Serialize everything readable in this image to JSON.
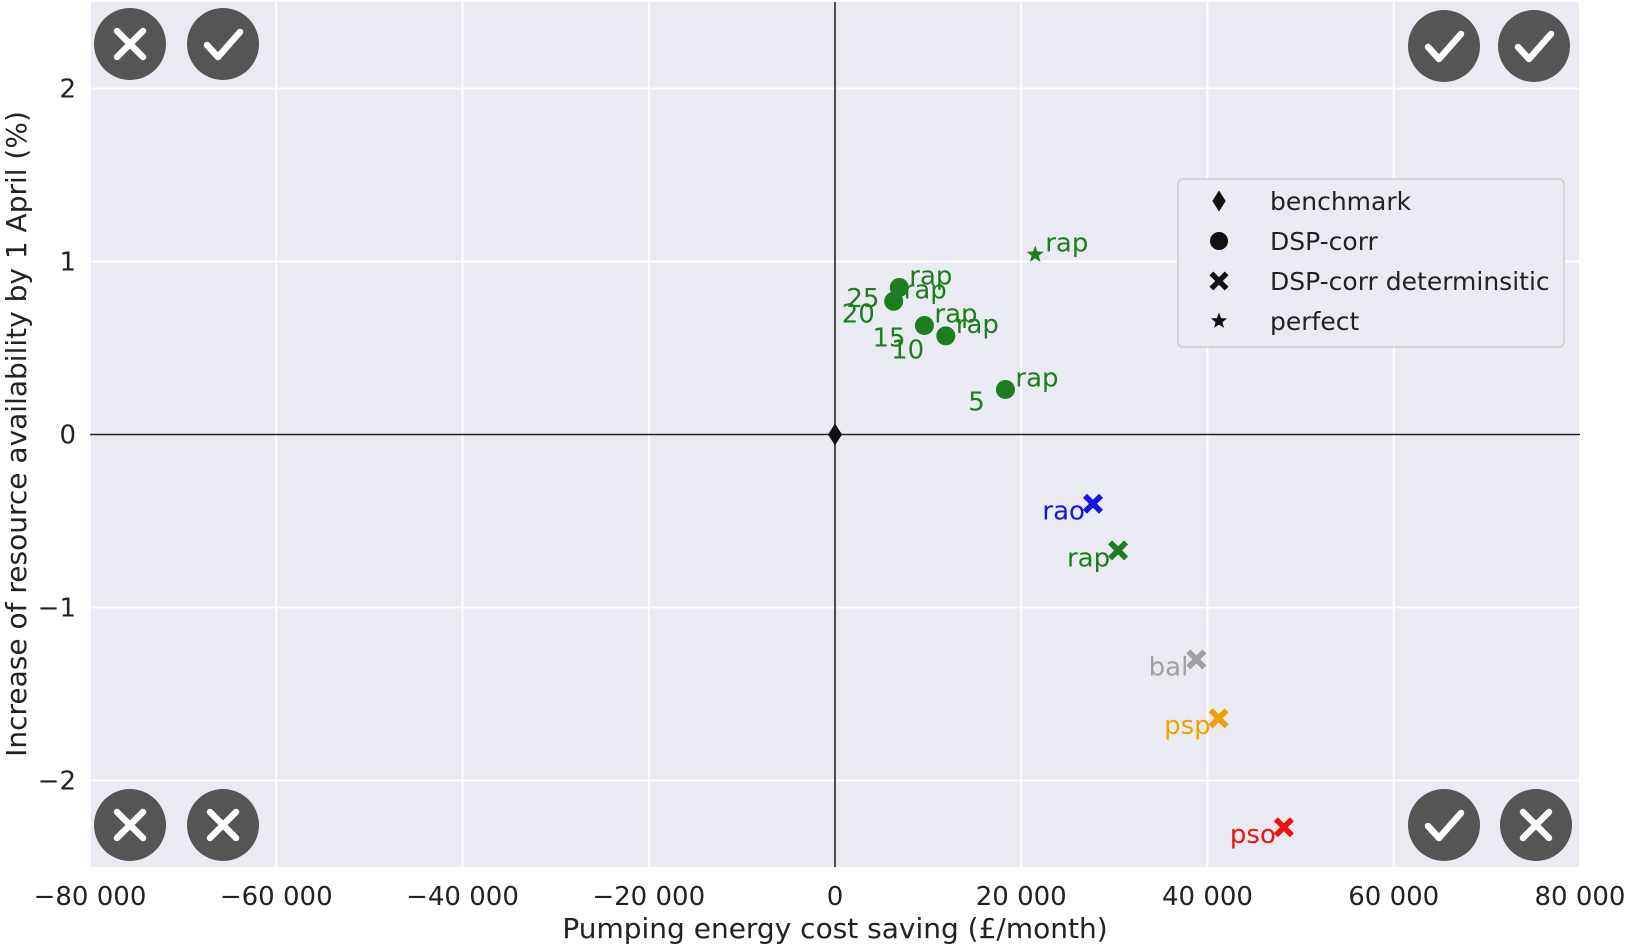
{
  "chart_data": {
    "type": "scatter",
    "xlabel": "Pumping energy cost saving  (£/month)",
    "ylabel": "Increase of resource availability by 1 April (%)",
    "xlim": [
      -80000,
      80000
    ],
    "ylim": [
      -2.5,
      2.5
    ],
    "x_ticks": [
      -80000,
      -60000,
      -40000,
      -20000,
      0,
      20000,
      40000,
      60000,
      80000
    ],
    "x_tick_labels": [
      "−80 000",
      "−60 000",
      "−40 000",
      "−20 000",
      "0",
      "20 000",
      "40 000",
      "60 000",
      "80 000"
    ],
    "y_ticks": [
      2,
      1,
      0,
      -1,
      -2
    ],
    "y_tick_labels": [
      "2",
      "1",
      "0",
      "−1",
      "−2"
    ],
    "grid": true,
    "reference_lines": {
      "x": 0,
      "y": 0
    },
    "legend_position": "upper right",
    "legend": [
      {
        "label": "benchmark",
        "marker": "diamond"
      },
      {
        "label": "DSP-corr",
        "marker": "circle"
      },
      {
        "label": "DSP-corr determinsitic",
        "marker": "x"
      },
      {
        "label": "perfect",
        "marker": "star"
      }
    ],
    "points": [
      {
        "series": "benchmark",
        "x": 0,
        "y": 0,
        "marker": "diamond",
        "color": "#111111"
      },
      {
        "series": "perfect",
        "x": 21500,
        "y": 1.04,
        "label": "rap",
        "marker": "star",
        "color": "#1e7d1e"
      },
      {
        "series": "DSP-corr",
        "x": 6900,
        "y": 0.85,
        "label": "rap",
        "marker": "circle",
        "color": "#1e7d1e"
      },
      {
        "series": "DSP-corr",
        "x": 6300,
        "y": 0.77,
        "label": "rap",
        "marker": "circle",
        "color": "#1e7d1e"
      },
      {
        "series": "DSP-corr",
        "x": 9600,
        "y": 0.63,
        "label": "rap",
        "marker": "circle",
        "color": "#1e7d1e"
      },
      {
        "series": "DSP-corr",
        "x": 11900,
        "y": 0.57,
        "label": "rap",
        "marker": "circle",
        "color": "#1e7d1e"
      },
      {
        "series": "DSP-corr",
        "x": 18300,
        "y": 0.26,
        "label": "rap",
        "marker": "circle",
        "color": "#1e7d1e"
      },
      {
        "series": "DSP-corr determinsitic",
        "x": 27700,
        "y": -0.4,
        "label": "rao",
        "marker": "x",
        "color": "#1515e0"
      },
      {
        "series": "DSP-corr determinsitic",
        "x": 30400,
        "y": -0.67,
        "label": "rap",
        "marker": "x",
        "color": "#1e7d1e"
      },
      {
        "series": "DSP-corr determinsitic",
        "x": 38800,
        "y": -1.3,
        "label": "bal",
        "marker": "x",
        "color": "#a0a0a0"
      },
      {
        "series": "DSP-corr determinsitic",
        "x": 41200,
        "y": -1.64,
        "label": "psp",
        "marker": "x",
        "color": "#f0a000"
      },
      {
        "series": "DSP-corr determinsitic",
        "x": 48200,
        "y": -2.27,
        "label": "pso",
        "marker": "x",
        "color": "#ee1111"
      }
    ],
    "window_labels": [
      {
        "text": "25",
        "x": 3000,
        "y": 0.79,
        "color": "#1e7d1e"
      },
      {
        "text": "20",
        "x": 2500,
        "y": 0.7,
        "color": "#1e7d1e"
      },
      {
        "text": "15",
        "x": 5800,
        "y": 0.56,
        "color": "#1e7d1e"
      },
      {
        "text": "10",
        "x": 7800,
        "y": 0.49,
        "color": "#1e7d1e"
      },
      {
        "text": "5",
        "x": 15200,
        "y": 0.19,
        "color": "#1e7d1e"
      }
    ],
    "quadrant_badges": [
      {
        "corner": "top-left",
        "icons": [
          "cross-icon",
          "check-icon"
        ]
      },
      {
        "corner": "top-right",
        "icons": [
          "check-icon",
          "check-icon"
        ]
      },
      {
        "corner": "bottom-left",
        "icons": [
          "cross-icon",
          "cross-icon"
        ]
      },
      {
        "corner": "bottom-right",
        "icons": [
          "check-icon",
          "cross-icon"
        ]
      }
    ],
    "colors": {
      "plot_background": "#eaeaf2",
      "grid": "#ffffff",
      "badge": "#555555",
      "badge_glyph": "#ffffff"
    }
  }
}
